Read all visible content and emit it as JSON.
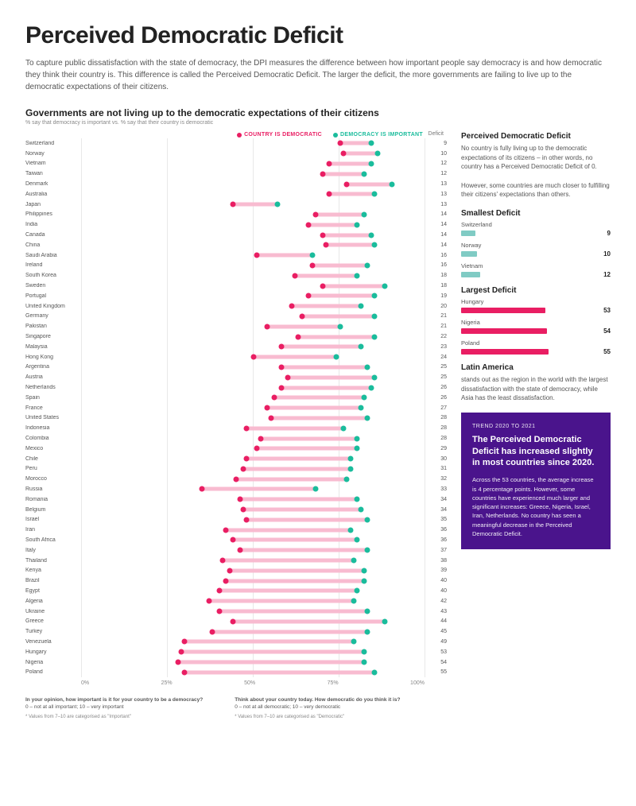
{
  "colors": {
    "pink": "#e91e63",
    "pink_bar": "#f8bbd0",
    "teal": "#1abc9c",
    "purple": "#4a148c",
    "grid": "#e8e8e8",
    "teal_bar": "#80cbc4"
  },
  "title": "Perceived Democratic Deficit",
  "intro": "To capture public dissatisfaction with the state of democracy, the DPI measures the difference between how important people say democracy is and how democratic they think their country is. This difference is called the Perceived Democratic Deficit. The larger the deficit, the more governments are failing to live up to the democratic expectations of their citizens.",
  "subtitle": "Governments are not living up to the democratic expectations of their citizens",
  "subnote": "% say that democracy is important vs. % say that their country is democratic",
  "legend": {
    "left": "COUNTRY IS DEMOCRATIC",
    "right": "DEMOCRACY IS IMPORTANT"
  },
  "deficit_header": "Deficit",
  "chart": {
    "xmin": 0,
    "xmax": 100,
    "xtick_step": 25,
    "xticks": [
      "0%",
      "25%",
      "50%",
      "75%",
      "100%"
    ],
    "rows": [
      {
        "c": "Switzerland",
        "lo": 75,
        "hi": 84,
        "d": 9
      },
      {
        "c": "Norway",
        "lo": 76,
        "hi": 86,
        "d": 10
      },
      {
        "c": "Vietnam",
        "lo": 72,
        "hi": 84,
        "d": 12
      },
      {
        "c": "Taiwan",
        "lo": 70,
        "hi": 82,
        "d": 12
      },
      {
        "c": "Denmark",
        "lo": 77,
        "hi": 90,
        "d": 13
      },
      {
        "c": "Australia",
        "lo": 72,
        "hi": 85,
        "d": 13
      },
      {
        "c": "Japan",
        "lo": 44,
        "hi": 57,
        "d": 13
      },
      {
        "c": "Philippines",
        "lo": 68,
        "hi": 82,
        "d": 14
      },
      {
        "c": "India",
        "lo": 66,
        "hi": 80,
        "d": 14
      },
      {
        "c": "Canada",
        "lo": 70,
        "hi": 84,
        "d": 14
      },
      {
        "c": "China",
        "lo": 71,
        "hi": 85,
        "d": 14
      },
      {
        "c": "Saudi Arabia",
        "lo": 51,
        "hi": 67,
        "d": 16
      },
      {
        "c": "Ireland",
        "lo": 67,
        "hi": 83,
        "d": 16
      },
      {
        "c": "South Korea",
        "lo": 62,
        "hi": 80,
        "d": 18
      },
      {
        "c": "Sweden",
        "lo": 70,
        "hi": 88,
        "d": 18
      },
      {
        "c": "Portugal",
        "lo": 66,
        "hi": 85,
        "d": 19
      },
      {
        "c": "United Kingdom",
        "lo": 61,
        "hi": 81,
        "d": 20
      },
      {
        "c": "Germany",
        "lo": 64,
        "hi": 85,
        "d": 21
      },
      {
        "c": "Pakistan",
        "lo": 54,
        "hi": 75,
        "d": 21
      },
      {
        "c": "Singapore",
        "lo": 63,
        "hi": 85,
        "d": 22
      },
      {
        "c": "Malaysia",
        "lo": 58,
        "hi": 81,
        "d": 23
      },
      {
        "c": "Hong Kong",
        "lo": 50,
        "hi": 74,
        "d": 24
      },
      {
        "c": "Argentina",
        "lo": 58,
        "hi": 83,
        "d": 25
      },
      {
        "c": "Austria",
        "lo": 60,
        "hi": 85,
        "d": 25
      },
      {
        "c": "Netherlands",
        "lo": 58,
        "hi": 84,
        "d": 26
      },
      {
        "c": "Spain",
        "lo": 56,
        "hi": 82,
        "d": 26
      },
      {
        "c": "France",
        "lo": 54,
        "hi": 81,
        "d": 27
      },
      {
        "c": "United States",
        "lo": 55,
        "hi": 83,
        "d": 28
      },
      {
        "c": "Indonesia",
        "lo": 48,
        "hi": 76,
        "d": 28
      },
      {
        "c": "Colombia",
        "lo": 52,
        "hi": 80,
        "d": 28
      },
      {
        "c": "Mexico",
        "lo": 51,
        "hi": 80,
        "d": 29
      },
      {
        "c": "Chile",
        "lo": 48,
        "hi": 78,
        "d": 30
      },
      {
        "c": "Peru",
        "lo": 47,
        "hi": 78,
        "d": 31
      },
      {
        "c": "Morocco",
        "lo": 45,
        "hi": 77,
        "d": 32
      },
      {
        "c": "Russia",
        "lo": 35,
        "hi": 68,
        "d": 33
      },
      {
        "c": "Romania",
        "lo": 46,
        "hi": 80,
        "d": 34
      },
      {
        "c": "Belgium",
        "lo": 47,
        "hi": 81,
        "d": 34
      },
      {
        "c": "Israel",
        "lo": 48,
        "hi": 83,
        "d": 35
      },
      {
        "c": "Iran",
        "lo": 42,
        "hi": 78,
        "d": 36
      },
      {
        "c": "South Africa",
        "lo": 44,
        "hi": 80,
        "d": 36
      },
      {
        "c": "Italy",
        "lo": 46,
        "hi": 83,
        "d": 37
      },
      {
        "c": "Thailand",
        "lo": 41,
        "hi": 79,
        "d": 38
      },
      {
        "c": "Kenya",
        "lo": 43,
        "hi": 82,
        "d": 39
      },
      {
        "c": "Brazil",
        "lo": 42,
        "hi": 82,
        "d": 40
      },
      {
        "c": "Egypt",
        "lo": 40,
        "hi": 80,
        "d": 40
      },
      {
        "c": "Algeria",
        "lo": 37,
        "hi": 79,
        "d": 42
      },
      {
        "c": "Ukraine",
        "lo": 40,
        "hi": 83,
        "d": 43
      },
      {
        "c": "Greece",
        "lo": 44,
        "hi": 88,
        "d": 44
      },
      {
        "c": "Turkey",
        "lo": 38,
        "hi": 83,
        "d": 45
      },
      {
        "c": "Venezuela",
        "lo": 30,
        "hi": 79,
        "d": 49
      },
      {
        "c": "Hungary",
        "lo": 29,
        "hi": 82,
        "d": 53
      },
      {
        "c": "Nigeria",
        "lo": 28,
        "hi": 82,
        "d": 54
      },
      {
        "c": "Poland",
        "lo": 30,
        "hi": 85,
        "d": 55
      }
    ]
  },
  "footer": {
    "q1": "In your opinion, how important is it for your country to be a democracy?",
    "q1_scale": "0 – not at all important; 10 – very important",
    "q2": "Think about your country today. How democratic do you think it is?",
    "q2_scale": "0 – not at all democratic; 10 – very democratic",
    "note1": "* Values from 7–10 are categorised as \"Important\"",
    "note2": "* Values from 7–10 are categorised as \"Democratic\""
  },
  "side": {
    "h1": "Perceived Democratic Deficit",
    "p1a": "No country is fully living up to the democratic expectations of its citizens – in other words, no country has a Perceived Democratic Deficit of 0.",
    "p1b": "However, some countries are much closer to fulfilling their citizens' expectations than others.",
    "h2": "Smallest Deficit",
    "smallest": [
      {
        "c": "Switzerland",
        "v": 9
      },
      {
        "c": "Norway",
        "v": 10
      },
      {
        "c": "Vietnam",
        "v": 12
      }
    ],
    "h3": "Largest Deficit",
    "largest": [
      {
        "c": "Hungary",
        "v": 53
      },
      {
        "c": "Nigeria",
        "v": 54
      },
      {
        "c": "Poland",
        "v": 55
      }
    ],
    "h4": "Latin America",
    "p4": "stands out as the region in the world with the largest dissatisfaction with the state of democracy, while Asia has the least dissatisfaction.",
    "trend_eyebrow": "TREND 2020 TO 2021",
    "trend_h": "The Perceived Democratic Deficit has increased slightly in most countries since 2020.",
    "trend_p": "Across the 53 countries, the average increase is 4 percentage points. However, some countries have experienced much larger and significant increases: Greece, Nigeria, Israel, Iran, Netherlands. No country has seen a meaningful decrease in the Perceived Democratic Deficit."
  }
}
